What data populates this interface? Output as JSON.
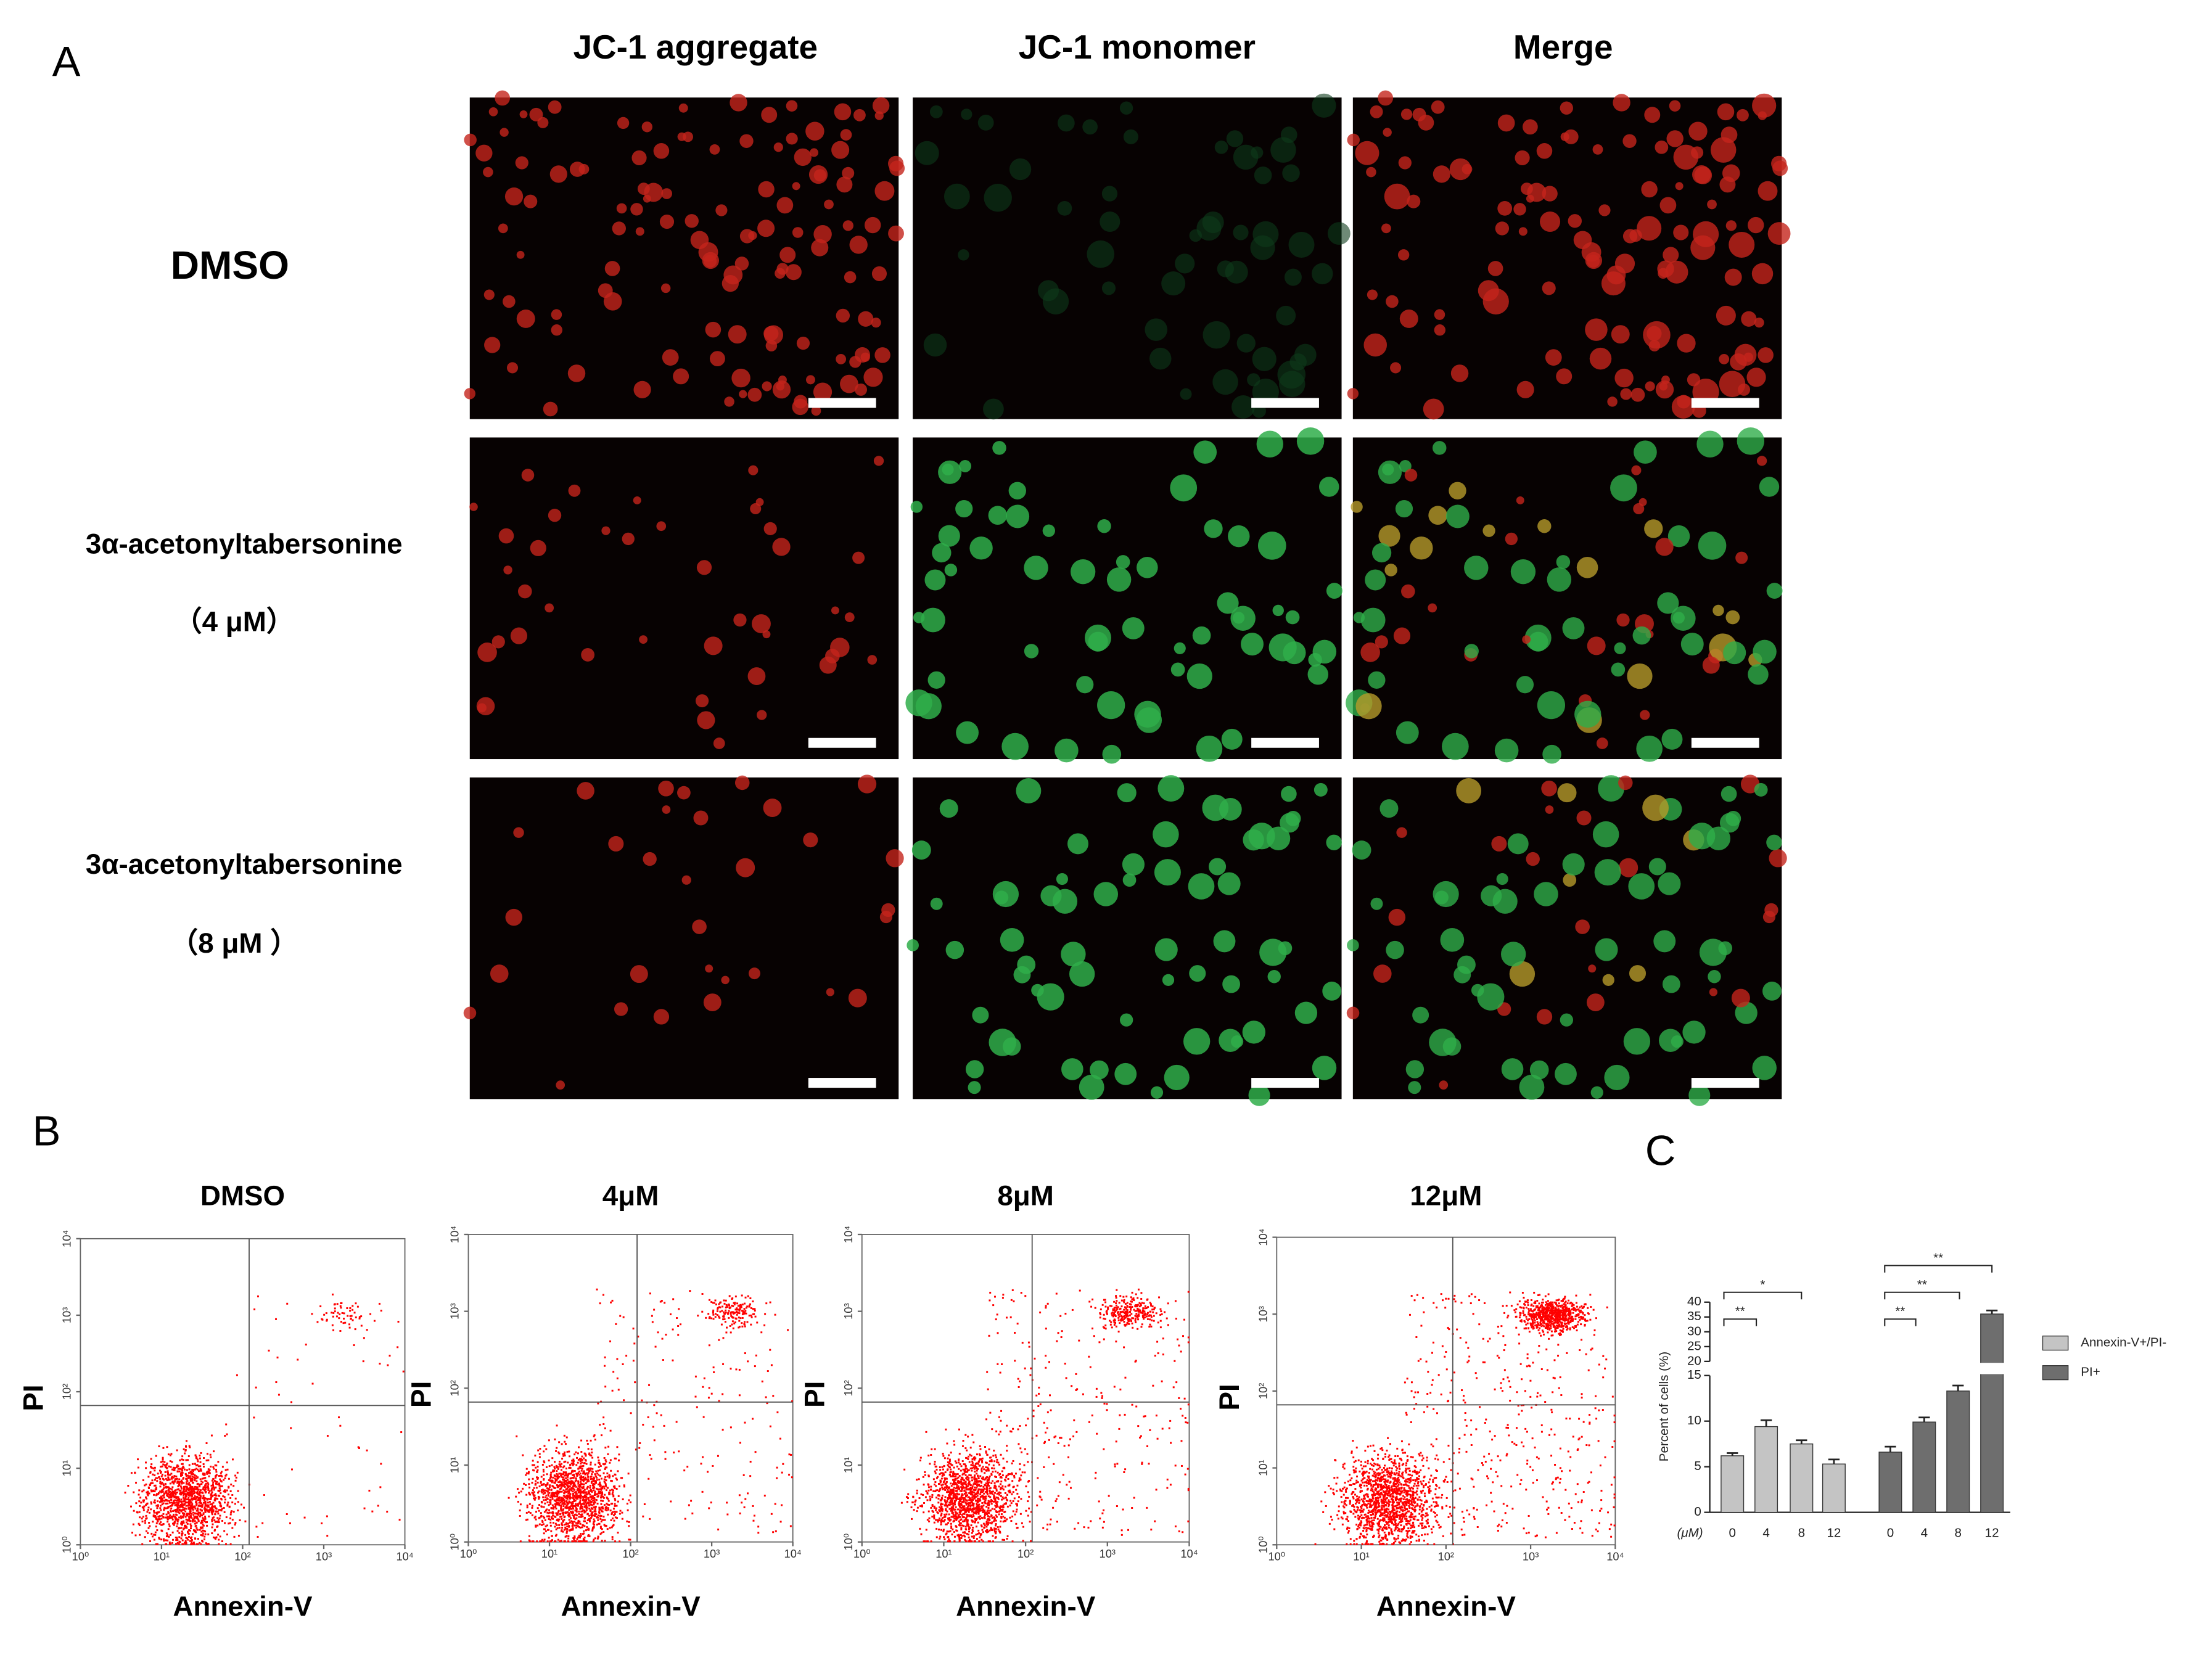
{
  "panels": {
    "a": "A",
    "b": "B",
    "c": "C"
  },
  "microscopy": {
    "columns": [
      "JC-1 aggregate",
      "JC-1 monomer",
      "Merge"
    ],
    "rows": [
      {
        "label": "DMSO"
      },
      {
        "label": "3α-acetonyltabersonine",
        "sub": "（4 μM）"
      },
      {
        "label": "3α-acetonyltabersonine",
        "sub": "（8 μM ）"
      }
    ]
  },
  "chart_data": [
    {
      "type": "flow",
      "title": "DMSO",
      "xlabel": "Annexin-V",
      "ylabel": "PI",
      "xlog": true,
      "ylog": true,
      "xlim": [
        1,
        10000
      ],
      "ylim": [
        1,
        10000
      ],
      "xticks": [
        {
          "value": 1,
          "label": "10⁰"
        },
        {
          "value": 10,
          "label": "10¹"
        },
        {
          "value": 100,
          "label": "10²"
        },
        {
          "value": 1000,
          "label": "10³"
        },
        {
          "value": 10000,
          "label": "10⁴"
        }
      ],
      "yticks": [
        {
          "value": 1,
          "label": "10⁰"
        },
        {
          "value": 10,
          "label": "10¹"
        },
        {
          "value": 100,
          "label": "10²"
        },
        {
          "value": 1000,
          "label": "10³"
        },
        {
          "value": 10000,
          "label": "10⁴"
        }
      ],
      "color": "#ff0000"
    },
    {
      "type": "flow",
      "title": "4μM",
      "xlabel": "Annexin-V",
      "ylabel": "PI",
      "xlog": true,
      "ylog": true,
      "xlim": [
        1,
        10000
      ],
      "ylim": [
        1,
        10000
      ],
      "xticks": [
        {
          "value": 1,
          "label": "10⁰"
        },
        {
          "value": 10,
          "label": "10¹"
        },
        {
          "value": 100,
          "label": "10²"
        },
        {
          "value": 1000,
          "label": "10³"
        },
        {
          "value": 10000,
          "label": "10⁴"
        }
      ],
      "yticks": [
        {
          "value": 1,
          "label": "10⁰"
        },
        {
          "value": 10,
          "label": "10¹"
        },
        {
          "value": 100,
          "label": "10²"
        },
        {
          "value": 1000,
          "label": "10³"
        },
        {
          "value": 10000,
          "label": "10⁴"
        }
      ],
      "color": "#ff0000"
    },
    {
      "type": "flow",
      "title": "8μM",
      "xlabel": "Annexin-V",
      "ylabel": "PI",
      "xlog": true,
      "ylog": true,
      "xlim": [
        1,
        10000
      ],
      "ylim": [
        1,
        10000
      ],
      "xticks": [
        {
          "value": 1,
          "label": "10⁰"
        },
        {
          "value": 10,
          "label": "10¹"
        },
        {
          "value": 100,
          "label": "10²"
        },
        {
          "value": 1000,
          "label": "10³"
        },
        {
          "value": 10000,
          "label": "10⁴"
        }
      ],
      "yticks": [
        {
          "value": 1,
          "label": "10⁰"
        },
        {
          "value": 10,
          "label": "10¹"
        },
        {
          "value": 100,
          "label": "10²"
        },
        {
          "value": 1000,
          "label": "10³"
        },
        {
          "value": 10000,
          "label": "10⁴"
        }
      ],
      "color": "#ff0000"
    },
    {
      "type": "flow",
      "title": "12μM",
      "xlabel": "Annexin-V",
      "ylabel": "PI",
      "xlog": true,
      "ylog": true,
      "xlim": [
        1,
        10000
      ],
      "ylim": [
        1,
        10000
      ],
      "xticks": [
        {
          "value": 1,
          "label": "10⁰"
        },
        {
          "value": 10,
          "label": "10¹"
        },
        {
          "value": 100,
          "label": "10²"
        },
        {
          "value": 1000,
          "label": "10³"
        },
        {
          "value": 10000,
          "label": "10⁴"
        }
      ],
      "yticks": [
        {
          "value": 1,
          "label": "10⁰"
        },
        {
          "value": 10,
          "label": "10¹"
        },
        {
          "value": 100,
          "label": "10²"
        },
        {
          "value": 1000,
          "label": "10³"
        },
        {
          "value": 10000,
          "label": "10⁴"
        }
      ],
      "color": "#ff0000"
    },
    {
      "type": "bar",
      "ylabel": "Percent of cells (%)",
      "x_unit": "(μM)",
      "categories": [
        "0",
        "4",
        "8",
        "12"
      ],
      "series": [
        {
          "name": "Annexin-V+/PI-",
          "color": "#c4c4c4",
          "values": [
            6.2,
            9.4,
            7.5,
            5.3
          ],
          "errors": [
            0.3,
            0.7,
            0.4,
            0.5
          ]
        },
        {
          "name": "PI+",
          "color": "#6e6e6e",
          "values": [
            6.6,
            9.9,
            13.3,
            36
          ],
          "errors": [
            0.6,
            0.5,
            0.6,
            1.2
          ]
        }
      ],
      "ylim_segments": [
        {
          "ylim": [
            0,
            15
          ],
          "yticks": [
            0,
            5,
            10,
            15
          ]
        },
        {
          "ylim": [
            20,
            40
          ],
          "yticks": [
            20,
            25,
            30,
            35,
            40
          ]
        }
      ],
      "annotations": [
        "**",
        "*",
        "**",
        "**",
        "**"
      ]
    }
  ]
}
